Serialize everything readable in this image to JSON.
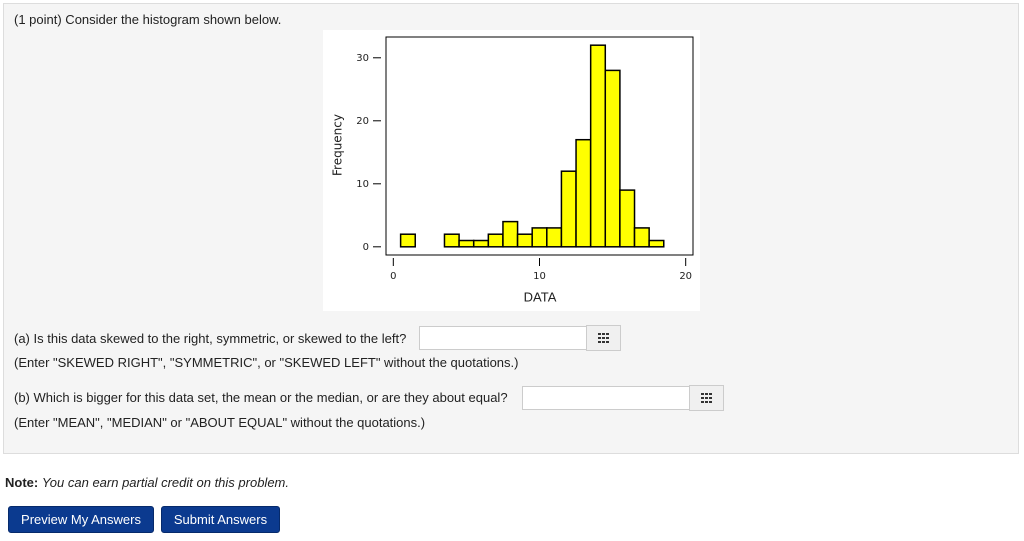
{
  "intro": "(1 point) Consider the histogram shown below.",
  "chart_data": {
    "type": "histogram",
    "xlabel": "DATA",
    "ylabel": "Frequency",
    "color": "#ffff00",
    "bins": [
      0.5,
      1.5,
      2.5,
      3.5,
      4.5,
      5.5,
      6.5,
      7.5,
      8.5,
      9.5,
      10.5,
      11.5,
      12.5,
      13.5,
      14.5,
      15.5,
      16.5,
      17.5,
      18.5
    ],
    "values": [
      2,
      0,
      0,
      2,
      1,
      1,
      2,
      4,
      2,
      3,
      3,
      12,
      17,
      32,
      28,
      9,
      3,
      1
    ],
    "xlim": [
      -0.5,
      20.5
    ],
    "ylim": [
      -1.3,
      33.3
    ],
    "xticks": [
      0,
      10,
      20
    ],
    "yticks": [
      0,
      10,
      20,
      30
    ]
  },
  "questions": [
    {
      "prompt": "(a) Is this data skewed to the right, symmetric, or skewed to the left?",
      "hint": "(Enter \"SKEWED RIGHT\", \"SYMMETRIC\", or \"SKEWED LEFT\" without the quotations.)"
    },
    {
      "prompt": "(b) Which is bigger for this data set, the mean or the median, or are they about equal?",
      "hint": "(Enter \"MEAN\", \"MEDIAN\" or \"ABOUT EQUAL\" without the quotations.)"
    }
  ],
  "note": {
    "label": "Note:",
    "text": "You can earn partial credit on this problem."
  },
  "buttons": [
    "Preview My Answers",
    "Submit Answers"
  ]
}
